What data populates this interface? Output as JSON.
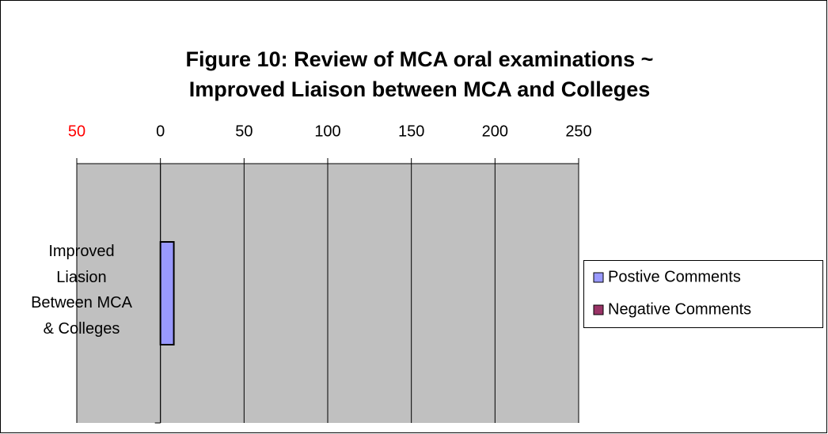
{
  "chart_data": {
    "type": "hbar",
    "title": "Figure 10: Review of MCA oral examinations ~\nImproved Liaison between MCA and Colleges",
    "categories": [
      "Improved\nLiasion\nBetween MCA\n& Colleges"
    ],
    "series": [
      {
        "name": "Postive Comments",
        "color": "#9999ff",
        "values": [
          8
        ]
      },
      {
        "name": "Negative Comments",
        "color": "#993366",
        "values": [
          0
        ]
      }
    ],
    "xlim": [
      -50,
      250
    ],
    "xticks": [
      {
        "value": -50,
        "label": "50"
      },
      0,
      50,
      100,
      150,
      200,
      250
    ],
    "negative_tick_color": "#ff0000",
    "grid": true,
    "legend": "right"
  }
}
